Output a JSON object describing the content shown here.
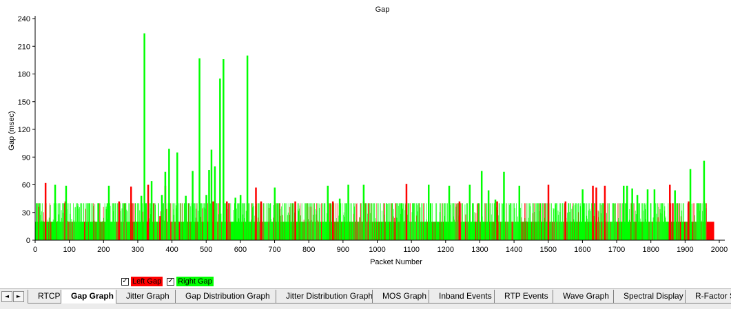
{
  "chart_data": {
    "type": "bar",
    "title": "Gap",
    "xlabel": "Packet Number",
    "ylabel": "Gap (msec)",
    "xlim": [
      0,
      2000
    ],
    "ylim": [
      0,
      240
    ],
    "xticks": [
      0,
      100,
      200,
      300,
      400,
      500,
      600,
      700,
      800,
      900,
      1000,
      1100,
      1200,
      1300,
      1400,
      1500,
      1600,
      1700,
      1800,
      1900,
      2000
    ],
    "yticks": [
      0,
      30,
      60,
      90,
      120,
      150,
      180,
      210,
      240
    ],
    "grid": false,
    "legend_position": "bottom-left",
    "baseline_band": {
      "min": 20,
      "max": 40
    },
    "series": [
      {
        "name": "Left Gap",
        "color": "#ff0000",
        "spikes": [
          {
            "x": 30,
            "y": 62
          },
          {
            "x": 88,
            "y": 42
          },
          {
            "x": 245,
            "y": 42
          },
          {
            "x": 280,
            "y": 58
          },
          {
            "x": 330,
            "y": 60
          },
          {
            "x": 365,
            "y": 26
          },
          {
            "x": 380,
            "y": 59
          },
          {
            "x": 520,
            "y": 42
          },
          {
            "x": 560,
            "y": 42
          },
          {
            "x": 620,
            "y": 40
          },
          {
            "x": 645,
            "y": 57
          },
          {
            "x": 660,
            "y": 42
          },
          {
            "x": 700,
            "y": 42
          },
          {
            "x": 760,
            "y": 42
          },
          {
            "x": 870,
            "y": 42
          },
          {
            "x": 960,
            "y": 42
          },
          {
            "x": 1085,
            "y": 61
          },
          {
            "x": 1240,
            "y": 42
          },
          {
            "x": 1350,
            "y": 42
          },
          {
            "x": 1500,
            "y": 60
          },
          {
            "x": 1550,
            "y": 42
          },
          {
            "x": 1630,
            "y": 59
          },
          {
            "x": 1640,
            "y": 57
          },
          {
            "x": 1665,
            "y": 59
          },
          {
            "x": 1855,
            "y": 60
          },
          {
            "x": 1910,
            "y": 42
          },
          {
            "x": 1955,
            "y": 42
          }
        ],
        "tail": {
          "from": 1963,
          "to": 1985,
          "y": 20
        }
      },
      {
        "name": "Right Gap",
        "color": "#00ff00",
        "spikes": [
          {
            "x": 58,
            "y": 60
          },
          {
            "x": 90,
            "y": 59
          },
          {
            "x": 215,
            "y": 59
          },
          {
            "x": 310,
            "y": 48
          },
          {
            "x": 319,
            "y": 224
          },
          {
            "x": 340,
            "y": 64
          },
          {
            "x": 370,
            "y": 49
          },
          {
            "x": 380,
            "y": 74
          },
          {
            "x": 391,
            "y": 99
          },
          {
            "x": 415,
            "y": 95
          },
          {
            "x": 440,
            "y": 48
          },
          {
            "x": 460,
            "y": 75
          },
          {
            "x": 480,
            "y": 197
          },
          {
            "x": 500,
            "y": 49
          },
          {
            "x": 508,
            "y": 76
          },
          {
            "x": 515,
            "y": 98
          },
          {
            "x": 525,
            "y": 80
          },
          {
            "x": 540,
            "y": 175
          },
          {
            "x": 550,
            "y": 196
          },
          {
            "x": 585,
            "y": 46
          },
          {
            "x": 600,
            "y": 49
          },
          {
            "x": 620,
            "y": 200
          },
          {
            "x": 700,
            "y": 57
          },
          {
            "x": 855,
            "y": 59
          },
          {
            "x": 890,
            "y": 45
          },
          {
            "x": 915,
            "y": 60
          },
          {
            "x": 960,
            "y": 60
          },
          {
            "x": 1150,
            "y": 60
          },
          {
            "x": 1210,
            "y": 59
          },
          {
            "x": 1270,
            "y": 60
          },
          {
            "x": 1305,
            "y": 75
          },
          {
            "x": 1325,
            "y": 54
          },
          {
            "x": 1345,
            "y": 44
          },
          {
            "x": 1370,
            "y": 74
          },
          {
            "x": 1415,
            "y": 59
          },
          {
            "x": 1600,
            "y": 55
          },
          {
            "x": 1720,
            "y": 59
          },
          {
            "x": 1730,
            "y": 59
          },
          {
            "x": 1745,
            "y": 56
          },
          {
            "x": 1760,
            "y": 49
          },
          {
            "x": 1790,
            "y": 55
          },
          {
            "x": 1810,
            "y": 55
          },
          {
            "x": 1870,
            "y": 54
          },
          {
            "x": 1915,
            "y": 77
          },
          {
            "x": 1955,
            "y": 86
          }
        ]
      }
    ]
  },
  "legend": {
    "items": [
      {
        "label": "Left Gap",
        "checked": "✓",
        "color": "#ff0000"
      },
      {
        "label": "Right Gap",
        "checked": "✓",
        "color": "#00ff00"
      }
    ]
  },
  "tabbar": {
    "nav_prev": "◄",
    "nav_next": "►",
    "active": "Gap Graph",
    "tabs": [
      "RTCP",
      "Gap Graph",
      "Jitter Graph",
      "Gap Distribution Graph",
      "Jitter Distribution Graph",
      "MOS Graph",
      "Inband Events",
      "RTP Events",
      "Wave Graph",
      "Spectral Display",
      "R-Factor Statistics"
    ]
  }
}
